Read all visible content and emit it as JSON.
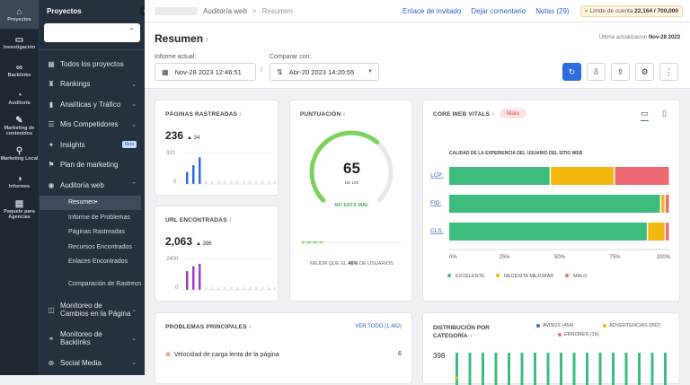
{
  "rail": [
    {
      "label": "Proyectos",
      "icon": "home-icon",
      "glyph": "⌂"
    },
    {
      "label": "Investigación",
      "icon": "monitor-icon",
      "glyph": "▭"
    },
    {
      "label": "Backlinks",
      "icon": "link-icon",
      "glyph": "∞"
    },
    {
      "label": "Auditoría",
      "icon": "gauge-icon",
      "glyph": "◔"
    },
    {
      "label": "Marketing de contenidos",
      "icon": "edit-icon",
      "glyph": "✎"
    },
    {
      "label": "Marketing Local",
      "icon": "pin-icon",
      "glyph": "⚲"
    },
    {
      "label": "Informes",
      "icon": "report-icon",
      "glyph": "◑"
    },
    {
      "label": "Paquete para Agencias",
      "icon": "document-icon",
      "glyph": "▤"
    }
  ],
  "sidebar": {
    "header": "Proyectos",
    "items": {
      "all": "Todos los proyectos",
      "rankings": "Rankings",
      "analytics": "Analíticas y Tráfico",
      "competitors": "Mis Competidores",
      "insights": "Insights",
      "beta": "Beta",
      "plan": "Plan de marketing",
      "audit": "Auditoría web",
      "monitor": "Monitoreo de Cambios en la Página",
      "backlinks": "Monitoreo de Backlinks",
      "social": "Social Media"
    },
    "sub": [
      "Resumen",
      "Informe de Problemas",
      "Páginas Rastreadas",
      "Recursos Encontrados",
      "Enlaces Encontrados",
      "Comparación de Rastreos"
    ]
  },
  "topbar": {
    "crumb1": "Auditoría web",
    "crumb2": "Resumen",
    "sep": ">",
    "link_invite": "Enlace de invitado",
    "link_comment": "Dejar comentario",
    "link_notes": "Notas (29)",
    "limit_label": "Límite de cuenta",
    "limit_value": "22,164 / 700,000"
  },
  "header": {
    "title": "Resumen",
    "updated_label": "Última actualización",
    "updated_value": "Nov-28 2023",
    "report_label": "Informe actual:",
    "report_value": "Nov-28 2023 12:46:51",
    "compare_label": "Comparar con:",
    "compare_value": "Abr-20 2023 14:20:55",
    "slash": "/"
  },
  "crawled": {
    "title": "PÁGINAS RASTREADAS",
    "value": "236",
    "delta": "▲ 34",
    "ymax": "320",
    "ymin": "0",
    "bars": [
      0.4,
      0.62,
      0.88,
      0.1,
      0.1,
      0.1,
      0.1,
      0.1,
      0.1,
      0.1,
      0.1,
      0.1,
      0.1,
      0.1,
      0.1
    ],
    "color": "#2e6ddc"
  },
  "urls": {
    "title": "URL ENCONTRADAS",
    "value": "2,063",
    "delta": "▲ 396",
    "ymax": "2400",
    "ymin": "0",
    "bars": [
      0.62,
      0.78,
      0.86,
      0.1,
      0.1,
      0.1,
      0.1,
      0.1,
      0.1,
      0.1,
      0.1,
      0.1,
      0.1,
      0.1,
      0.1
    ],
    "color": "#a23fc4"
  },
  "score": {
    "title": "PUNTUACIÓN",
    "value": "65",
    "sub": "DE 100",
    "status": "NO ESTÁ MAL",
    "fraction": 0.65,
    "better": "MEJOR QUE EL",
    "pct": "46%",
    "better_tail": "DE USUARIOS",
    "color": "#7ed15b"
  },
  "cwv": {
    "title": "CORE WEB VITALS",
    "status": "Malo",
    "subtitle": "CALIDAD DE LA EXPERIENCIA DEL USUARIO DEL SITIO WEB",
    "rows": [
      {
        "label": "LCP:",
        "good": 46,
        "need": 29,
        "poor": 25
      },
      {
        "label": "FID:",
        "good": 96,
        "need": 2,
        "poor": 2
      },
      {
        "label": "CLS:",
        "good": 90,
        "need": 8,
        "poor": 2
      }
    ],
    "ticks": [
      "0%",
      "25%",
      "50%",
      "75%",
      "100%"
    ],
    "legend": [
      "EXCELENTE",
      "NECESITA MEJORAR",
      "MALO"
    ],
    "colors": {
      "good": "#3dbd7d",
      "need": "#f5b80f",
      "poor": "#f06a73"
    }
  },
  "problems": {
    "title": "PROBLEMAS PRINCIPALES",
    "link": "VER TODO (1,462)",
    "first": "Velocidad de carga lenta de la página",
    "first_count": "6"
  },
  "dist": {
    "title": "DISTRIBUCIÓN POR CATEGORÍA",
    "warn": "AVISOS (454)",
    "adv": "ADVERTENCIAS (992)",
    "err": "ERRORES (16)",
    "ymax": "398"
  }
}
